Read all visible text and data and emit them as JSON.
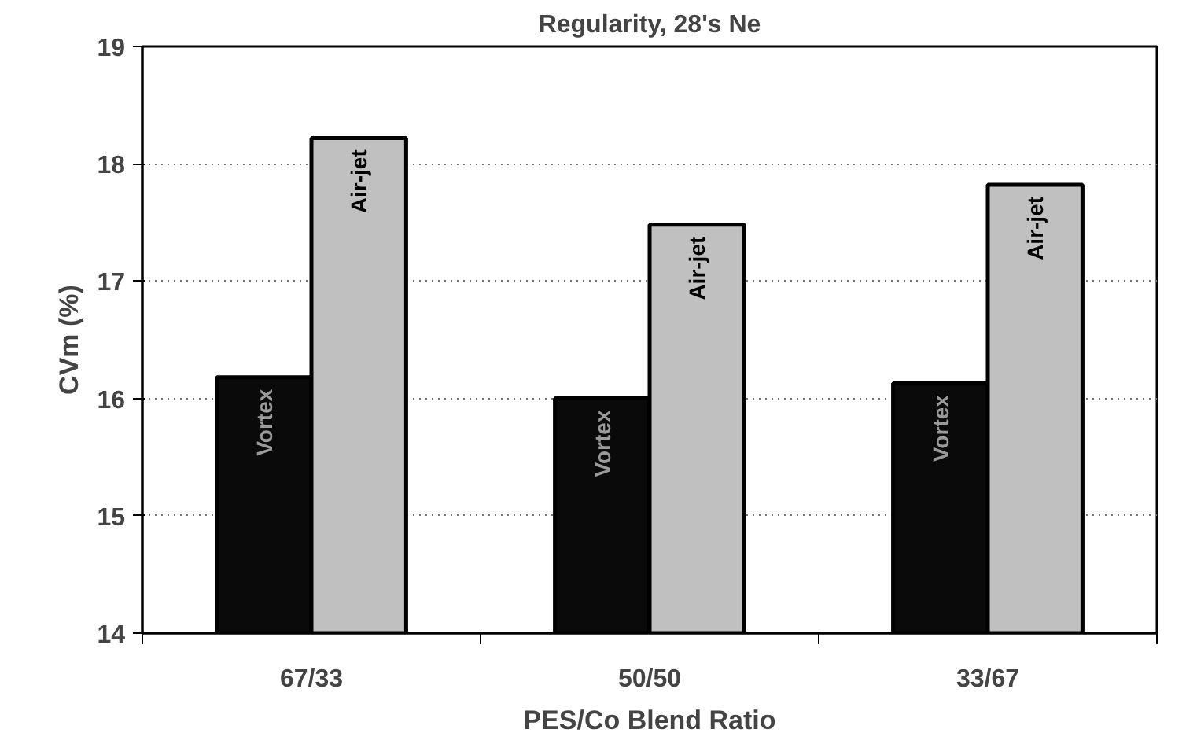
{
  "chart_data": {
    "type": "bar",
    "title": "Regularity, 28's Ne",
    "xlabel": "PES/Co Blend Ratio",
    "ylabel": "CVm (%)",
    "categories": [
      "67/33",
      "50/50",
      "33/67"
    ],
    "series": [
      {
        "name": "Vortex",
        "color": "#0a0a0a",
        "values": [
          16.18,
          16.0,
          16.13
        ]
      },
      {
        "name": "Air-jet",
        "color": "#c0c0c0",
        "values": [
          18.22,
          17.48,
          17.82
        ]
      }
    ],
    "ylim": [
      14,
      19
    ],
    "yticks": [
      14,
      15,
      16,
      17,
      18,
      19
    ],
    "grid": "y"
  }
}
